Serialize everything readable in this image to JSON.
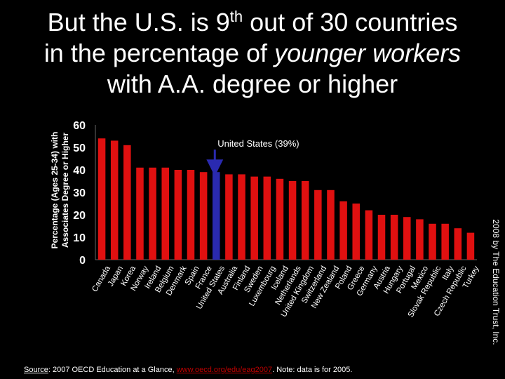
{
  "title": {
    "line1_a": "But the U.S. is 9",
    "line1_sup": "th",
    "line1_b": " out of 30 countries",
    "line2_a": "in the percentage of ",
    "line2_italic": "younger workers",
    "line3": "with A.A. degree or higher"
  },
  "ylabel": {
    "line1": "Percentage (Ages 25-34) with",
    "line2": "Associates Degree or Higher"
  },
  "credit": "2008 by The Education Trust, Inc.",
  "source": {
    "label": "Source",
    "text1": ": 2007 OECD Education at a Glance, ",
    "link": "www.oecd.org/edu/eag2007",
    "text2": ". Note: data is for 2005."
  },
  "colors": {
    "bar": "#e01010",
    "highlight": "#2a2ab0",
    "text": "#ffffff",
    "background": "#000000"
  },
  "chart_data": {
    "type": "bar",
    "categories": [
      "Canada",
      "Japan",
      "Korea",
      "Norway",
      "Ireland",
      "Belgium",
      "Denmark",
      "Spain",
      "France",
      "United States",
      "Australia",
      "Finland",
      "Sweden",
      "Luxembourg",
      "Iceland",
      "Netherlands",
      "United Kingdom",
      "Switzerland",
      "New Zealand",
      "Poland",
      "Greece",
      "Germany",
      "Austria",
      "Hungary",
      "Portugal",
      "Mexico",
      "Slovak Republic",
      "Italy",
      "Czech Republic",
      "Turkey"
    ],
    "values": [
      54,
      53,
      51,
      41,
      41,
      41,
      40,
      40,
      39,
      39,
      38,
      38,
      37,
      37,
      36,
      35,
      35,
      31,
      31,
      26,
      25,
      22,
      20,
      20,
      19,
      18,
      16,
      16,
      14,
      12
    ],
    "highlight_category": "United States",
    "annotation": "United States (39%)",
    "yticks": [
      0,
      10,
      20,
      30,
      40,
      50,
      60
    ],
    "ylim": [
      0,
      60
    ],
    "grid": false
  }
}
